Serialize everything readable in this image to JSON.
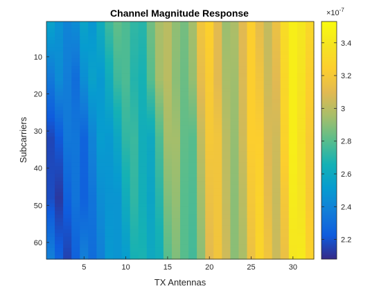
{
  "chart_data": {
    "type": "heatmap",
    "title": "Channel Magnitude Response",
    "xlabel": "TX Antennas",
    "ylabel": "Subcarriers",
    "x_range": [
      1,
      32
    ],
    "y_range": [
      1,
      64
    ],
    "x_ticks": [
      5,
      10,
      15,
      20,
      25,
      30
    ],
    "y_ticks": [
      10,
      20,
      30,
      40,
      50,
      60
    ],
    "y_direction": "reverse",
    "colormap": "parula",
    "colorbar": {
      "clim": [
        2.08,
        3.53
      ],
      "ticks": [
        "2.2",
        "2.4",
        "2.6",
        "2.8",
        "3",
        "3.2",
        "3.4"
      ],
      "tick_values": [
        2.2,
        2.4,
        2.6,
        2.8,
        3.0,
        3.2,
        3.4
      ],
      "exponent_base": "×10",
      "exponent_power": "-7"
    },
    "rows_sampled": [
      1,
      16,
      32,
      48,
      64
    ],
    "values_sampled": [
      [
        2.55,
        2.47,
        2.4,
        2.44,
        2.56,
        2.49,
        2.62,
        2.75,
        2.82,
        2.78,
        2.72,
        2.7,
        2.85,
        2.96,
        3.0,
        2.91,
        2.86,
        2.95,
        3.18,
        3.25,
        3.1,
        2.93,
        2.97,
        3.1,
        3.24,
        3.12,
        3.02,
        3.15,
        3.33,
        3.45,
        3.4,
        3.3
      ],
      [
        2.35,
        2.44,
        2.37,
        2.3,
        2.45,
        2.55,
        2.5,
        2.62,
        2.75,
        2.78,
        2.69,
        2.66,
        2.8,
        2.95,
        3.0,
        2.9,
        2.84,
        2.92,
        3.12,
        3.22,
        3.1,
        2.96,
        2.94,
        3.08,
        3.24,
        3.18,
        3.04,
        3.1,
        3.3,
        3.45,
        3.38,
        3.25
      ],
      [
        2.16,
        2.22,
        2.35,
        2.34,
        2.26,
        2.4,
        2.52,
        2.5,
        2.58,
        2.72,
        2.74,
        2.63,
        2.6,
        2.78,
        2.95,
        2.95,
        2.82,
        2.8,
        3.02,
        3.2,
        3.18,
        3.0,
        2.92,
        3.05,
        3.24,
        3.24,
        3.08,
        3.05,
        3.27,
        3.45,
        3.36,
        3.22
      ],
      [
        2.18,
        2.12,
        2.25,
        2.33,
        2.25,
        2.33,
        2.45,
        2.48,
        2.48,
        2.62,
        2.72,
        2.64,
        2.57,
        2.7,
        2.88,
        2.92,
        2.8,
        2.78,
        2.95,
        3.15,
        3.18,
        3.02,
        2.9,
        3.0,
        3.2,
        3.27,
        3.12,
        3.03,
        3.2,
        3.43,
        3.38,
        3.22
      ],
      [
        2.38,
        2.25,
        2.15,
        2.25,
        2.38,
        2.3,
        2.38,
        2.5,
        2.48,
        2.52,
        2.66,
        2.67,
        2.6,
        2.63,
        2.8,
        2.88,
        2.8,
        2.76,
        2.9,
        3.1,
        3.18,
        3.05,
        2.9,
        2.96,
        3.15,
        3.28,
        3.18,
        3.04,
        3.15,
        3.4,
        3.42,
        3.27
      ]
    ]
  }
}
